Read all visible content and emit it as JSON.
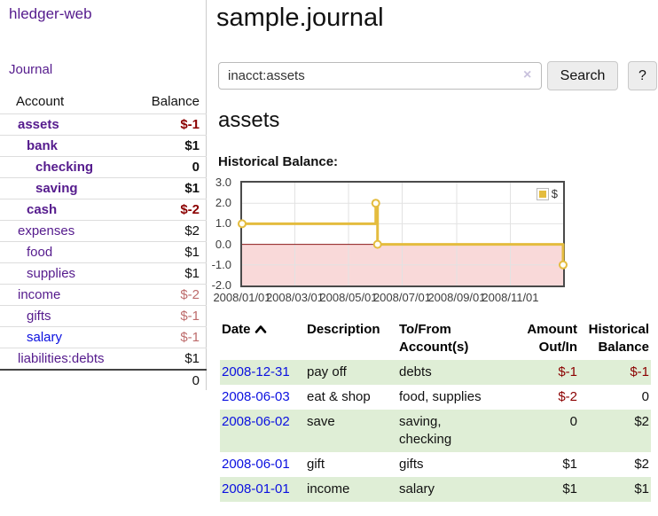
{
  "colors": {
    "link_purple": "#551b8d",
    "link_blue": "#0b10e0",
    "negative_strong": "#8b0000",
    "negative_muted": "#bd6b6b",
    "row_green": "#dfeed6",
    "chart_line": "#e4bc3e",
    "chart_zero_line": "#8b1a1a",
    "chart_negative_fill": "#f9d9d9"
  },
  "sidebar": {
    "app_title": "hledger-web",
    "nav": {
      "journal": "Journal"
    },
    "accounts_table": {
      "headers": {
        "account": "Account",
        "balance": "Balance"
      },
      "rows": [
        {
          "name": "assets",
          "balance": "$-1",
          "level": 0,
          "bold": true,
          "link_color": "purple",
          "tone": "neg"
        },
        {
          "name": "bank",
          "balance": "$1",
          "level": 1,
          "bold": true,
          "link_color": "purple",
          "tone": "pos"
        },
        {
          "name": "checking",
          "balance": "0",
          "level": 2,
          "bold": true,
          "link_color": "purple",
          "tone": "pos"
        },
        {
          "name": "saving",
          "balance": "$1",
          "level": 2,
          "bold": true,
          "link_color": "purple",
          "tone": "pos"
        },
        {
          "name": "cash",
          "balance": "$-2",
          "level": 1,
          "bold": true,
          "link_color": "purple",
          "tone": "neg"
        },
        {
          "name": "expenses",
          "balance": "$2",
          "level": 0,
          "bold": false,
          "link_color": "purple",
          "tone": "pos"
        },
        {
          "name": "food",
          "balance": "$1",
          "level": 1,
          "bold": false,
          "link_color": "purple",
          "tone": "pos"
        },
        {
          "name": "supplies",
          "balance": "$1",
          "level": 1,
          "bold": false,
          "link_color": "purple",
          "tone": "pos"
        },
        {
          "name": "income",
          "balance": "$-2",
          "level": 0,
          "bold": false,
          "link_color": "purple",
          "tone": "negmuted"
        },
        {
          "name": "gifts",
          "balance": "$-1",
          "level": 1,
          "bold": false,
          "link_color": "purple",
          "tone": "negmuted"
        },
        {
          "name": "salary",
          "balance": "$-1",
          "level": 1,
          "bold": false,
          "link_color": "blue",
          "tone": "negmuted"
        },
        {
          "name": "liabilities:debts",
          "balance": "$1",
          "level": 0,
          "bold": false,
          "link_color": "purple",
          "tone": "pos"
        }
      ],
      "total": "0"
    }
  },
  "main": {
    "title": "sample.journal",
    "search": {
      "value": "inacct:assets",
      "clear_icon": "×",
      "button_label": "Search",
      "help_label": "?"
    },
    "account_heading": "assets",
    "chart_title": "Historical Balance:"
  },
  "chart_data": {
    "type": "line",
    "title": "Historical Balance:",
    "series": [
      {
        "name": "$",
        "color": "#e4bc3e",
        "step": true,
        "points": [
          [
            "2008-01-01",
            1
          ],
          [
            "2008-06-01",
            2
          ],
          [
            "2008-06-02",
            2
          ],
          [
            "2008-06-03",
            0
          ],
          [
            "2008-12-31",
            -1
          ]
        ]
      }
    ],
    "markers": [
      [
        "2008-01-01",
        1
      ],
      [
        "2008-06-01",
        2
      ],
      [
        "2008-06-03",
        0
      ],
      [
        "2008-12-31",
        -1
      ]
    ],
    "x_range": [
      "2008-01-01",
      "2008-12-31"
    ],
    "ylim": [
      -2,
      3
    ],
    "y_ticks": [
      "3.0",
      "2.0",
      "1.0",
      "0.0",
      "-1.0",
      "-2.0"
    ],
    "x_ticks": [
      "2008/01/01",
      "2008/03/01",
      "2008/05/01",
      "2008/07/01",
      "2008/09/01",
      "2008/11/01"
    ],
    "legend": {
      "label": "$",
      "position": "top-right"
    },
    "grid": true,
    "zero_line": true,
    "negative_region_fill": "#f9d9d9"
  },
  "register_table": {
    "headers": {
      "date": "Date",
      "description": "Description",
      "account": "To/From Account(s)",
      "amount": "Amount Out/In",
      "balance": "Historical Balance"
    },
    "sort": {
      "column": "date",
      "direction": "ascending"
    },
    "rows": [
      {
        "date": "2008-12-31",
        "description": "pay off",
        "accounts": "debts",
        "amount": "$-1",
        "amount_neg": true,
        "balance": "$-1",
        "balance_neg": true
      },
      {
        "date": "2008-06-03",
        "description": "eat & shop",
        "accounts": "food, supplies",
        "amount": "$-2",
        "amount_neg": true,
        "balance": "0",
        "balance_neg": false
      },
      {
        "date": "2008-06-02",
        "description": "save",
        "accounts": "saving,\nchecking",
        "amount": "0",
        "amount_neg": false,
        "balance": "$2",
        "balance_neg": false
      },
      {
        "date": "2008-06-01",
        "description": "gift",
        "accounts": "gifts",
        "amount": "$1",
        "amount_neg": false,
        "balance": "$2",
        "balance_neg": false
      },
      {
        "date": "2008-01-01",
        "description": "income",
        "accounts": "salary",
        "amount": "$1",
        "amount_neg": false,
        "balance": "$1",
        "balance_neg": false
      }
    ]
  }
}
